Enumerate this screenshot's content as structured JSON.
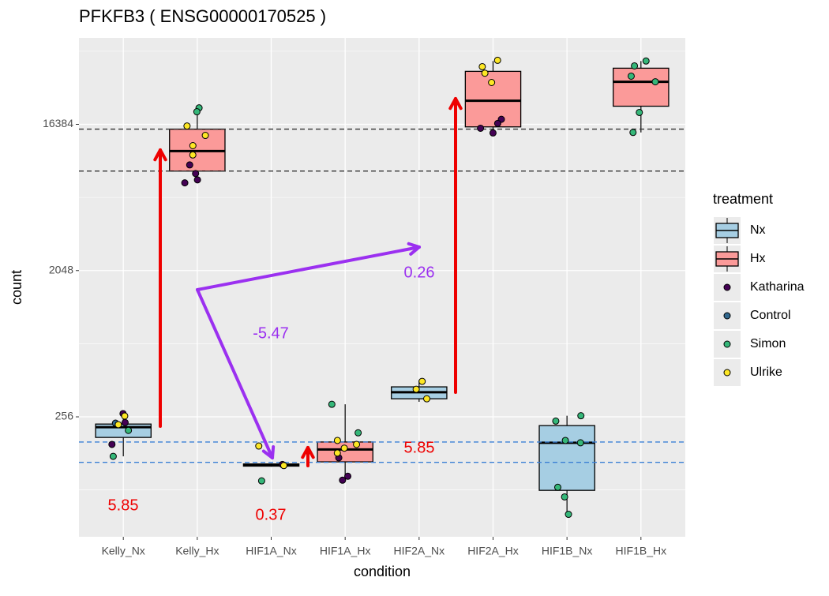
{
  "chart_data": {
    "type": "box",
    "title": "PFKFB3 ( ENSG00000170525 )",
    "x_label": "condition",
    "y_label": "count",
    "categories": [
      "Kelly_Nx",
      "Kelly_Hx",
      "HIF1A_Nx",
      "HIF1A_Hx",
      "HIF2A_Nx",
      "HIF2A_Hx",
      "HIF1B_Nx",
      "HIF1B_Hx"
    ],
    "log_base": 2,
    "ylim": [
      46.5,
      56000
    ],
    "yticks": [
      256,
      2048,
      16384
    ],
    "grid": true,
    "legend_title": "treatment",
    "box_series": [
      {
        "name": "Nx",
        "color": "#a6cee3",
        "low": [
          146,
          null,
          126,
          null,
          317,
          null,
          64,
          null
        ],
        "q1": [
          191,
          null,
          127,
          null,
          331,
          null,
          90,
          null
        ],
        "median": [
          221,
          null,
          129,
          null,
          363,
          null,
          177,
          null
        ],
        "q3": [
          231,
          null,
          131,
          null,
          392,
          null,
          226,
          null
        ],
        "high": [
          265,
          null,
          132,
          null,
          429,
          null,
          260,
          null
        ]
      },
      {
        "name": "Hx",
        "color": "#fb9a99",
        "low": [
          null,
          7130,
          null,
          104,
          null,
          14500,
          null,
          14600
        ],
        "q1": [
          null,
          8430,
          null,
          135,
          null,
          15800,
          null,
          21200
        ],
        "median": [
          null,
          11200,
          null,
          161,
          null,
          22900,
          null,
          30000
        ],
        "q3": [
          null,
          15300,
          null,
          179,
          null,
          34800,
          null,
          36400
        ],
        "high": [
          null,
          20700,
          null,
          306,
          null,
          40300,
          null,
          40300
        ]
      }
    ],
    "point_series": [
      {
        "name": "Katharina",
        "color": "#440154",
        "values": [
          [
            268,
            236,
            173
          ],
          [
            9200,
            8140,
            7440,
            7130
          ],
          [
            130
          ],
          [
            110,
            104,
            143
          ],
          [],
          [
            17600,
            16600,
            15500,
            14500
          ],
          [],
          []
        ]
      },
      {
        "name": "Control",
        "color": "#31688e",
        "values": [
          [
            234
          ],
          [],
          [],
          [],
          [],
          [],
          [],
          []
        ]
      },
      {
        "name": "Simon",
        "color": "#35b779",
        "values": [
          [
            211,
            146
          ],
          [
            20700,
            19600
          ],
          [
            103
          ],
          [
            306,
            204
          ],
          [],
          [],
          [
            260,
            241,
            183,
            177,
            94,
            82,
            64
          ],
          [
            40300,
            37600,
            32500,
            30000,
            19400,
            14600
          ]
        ]
      },
      {
        "name": "Ulrike",
        "color": "#fde725",
        "values": [
          [
            259,
            229
          ],
          [
            16000,
            14000,
            12100,
            10600
          ],
          [
            169,
            128
          ],
          [
            183,
            173,
            164,
            153
          ],
          [
            424,
            379,
            331
          ],
          [
            40700,
            37200,
            33900,
            29700
          ],
          [],
          []
        ]
      }
    ],
    "reference_lines": [
      {
        "value": 15300,
        "color": "#333333"
      },
      {
        "value": 8430,
        "color": "#333333"
      },
      {
        "value": 179,
        "color": "#3a7fd5"
      },
      {
        "value": 134,
        "color": "#3a7fd5"
      }
    ],
    "annotations": [
      {
        "text": "5.85",
        "color": "#ee0000"
      },
      {
        "text": "0.37",
        "color": "#ee0000"
      },
      {
        "text": "5.85",
        "color": "#ee0000"
      },
      {
        "text": "-5.47",
        "color": "#9b30f0"
      },
      {
        "text": "0.26",
        "color": "#9b30f0"
      }
    ]
  }
}
